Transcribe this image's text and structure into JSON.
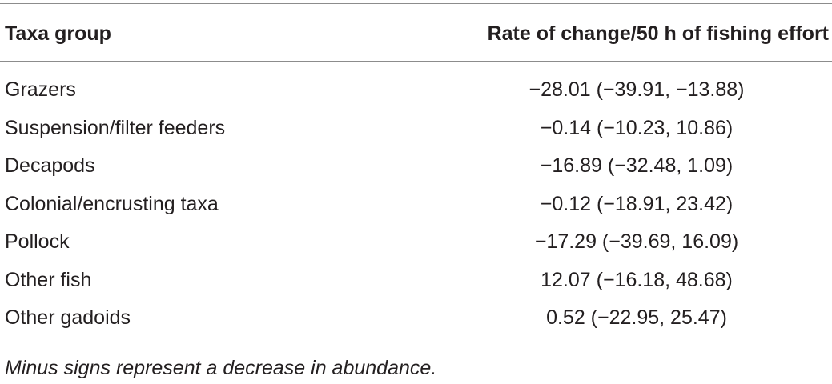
{
  "table": {
    "headers": {
      "taxa": "Taxa group",
      "rate": "Rate of change/50 h of fishing effort"
    },
    "rows": [
      {
        "taxa": "Grazers",
        "rate": "−28.01 (−39.91, −13.88)"
      },
      {
        "taxa": "Suspension/filter feeders",
        "rate": "−0.14 (−10.23, 10.86)"
      },
      {
        "taxa": "Decapods",
        "rate": "−16.89 (−32.48, 1.09)"
      },
      {
        "taxa": "Colonial/encrusting taxa",
        "rate": "−0.12 (−18.91, 23.42)"
      },
      {
        "taxa": "Pollock",
        "rate": "−17.29 (−39.69, 16.09)"
      },
      {
        "taxa": "Other fish",
        "rate": "12.07 (−16.18, 48.68)"
      },
      {
        "taxa": "Other gadoids",
        "rate": "0.52 (−22.95, 25.47)"
      }
    ],
    "footnote": "Minus signs represent a decrease in abundance."
  }
}
